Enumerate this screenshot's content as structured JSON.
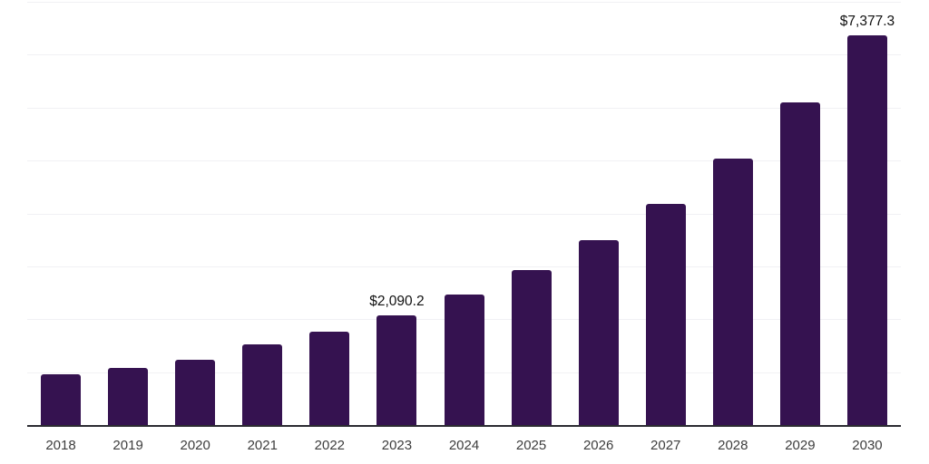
{
  "chart_data": {
    "type": "bar",
    "title": "",
    "xlabel": "",
    "ylabel": "",
    "categories": [
      "2018",
      "2019",
      "2020",
      "2021",
      "2022",
      "2023",
      "2024",
      "2025",
      "2026",
      "2027",
      "2028",
      "2029",
      "2030"
    ],
    "values": [
      975,
      1090,
      1250,
      1535,
      1790,
      2090.2,
      2485,
      2945,
      3510,
      4195,
      5060,
      6115,
      7377.3
    ],
    "bar_labels": {
      "2023": "$2,090.2",
      "2030": "$7,377.3"
    },
    "ylim": [
      0,
      8000
    ],
    "gridline_interval": 1000,
    "grid": "horizontal-only",
    "legend": "none",
    "y_tick_labels_shown": false,
    "colors": {
      "bar": "#351250",
      "axis_line": "#2b2b31",
      "gridline": "#f1f1f4",
      "value_label": "#111111",
      "tick_label": "#3d3d3d",
      "background": "#ffffff"
    }
  }
}
